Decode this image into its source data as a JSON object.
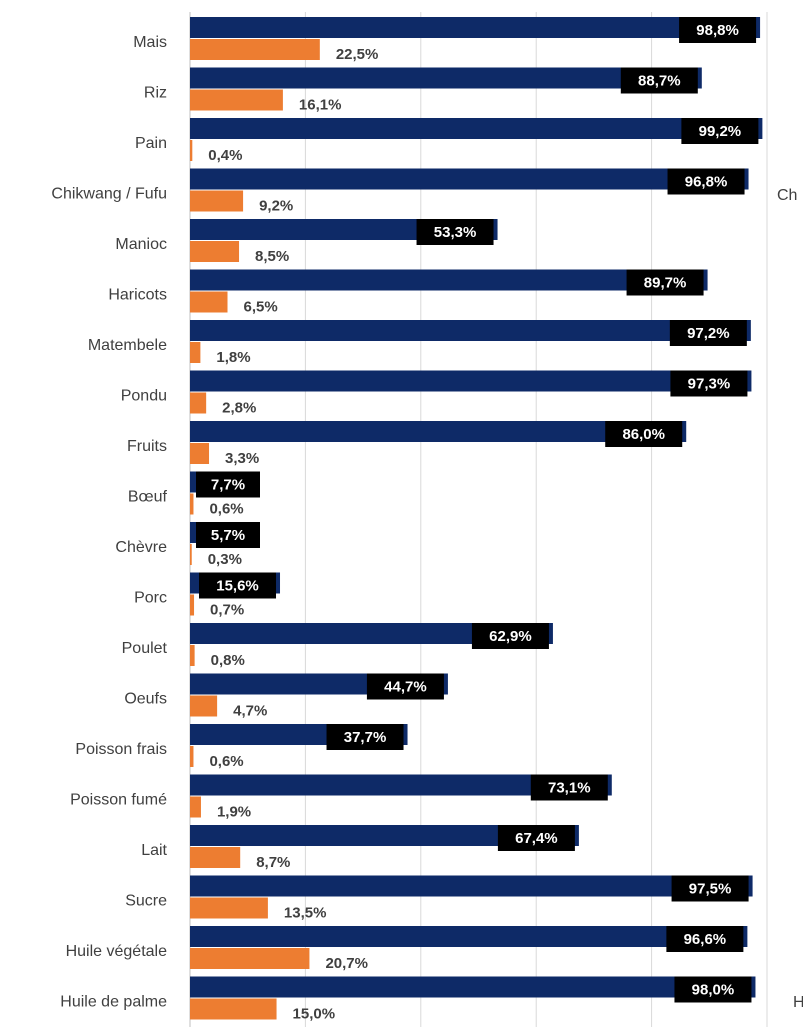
{
  "chart_data": {
    "type": "barh",
    "categories": [
      "Mais",
      "Riz",
      "Pain",
      "Chikwang / Fufu",
      "Manioc",
      "Haricots",
      "Matembele",
      "Pondu",
      "Fruits",
      "Bœuf",
      "Chèvre",
      "Porc",
      "Poulet",
      "Oeufs",
      "Poisson frais",
      "Poisson fumé",
      "Lait",
      "Sucre",
      "Huile végétale",
      "Huile de palme"
    ],
    "series": [
      {
        "color": "#0e2a67",
        "values": [
          98.8,
          88.7,
          99.2,
          96.8,
          53.3,
          89.7,
          97.2,
          97.3,
          86.0,
          7.7,
          5.7,
          15.6,
          62.9,
          44.7,
          37.7,
          73.1,
          67.4,
          97.5,
          96.6,
          98.0
        ],
        "value_labels": [
          "98,8%",
          "88,7%",
          "99,2%",
          "96,8%",
          "53,3%",
          "89,7%",
          "97,2%",
          "97,3%",
          "86,0%",
          "7,7%",
          "5,7%",
          "15,6%",
          "62,9%",
          "44,7%",
          "37,7%",
          "73,1%",
          "67,4%",
          "97,5%",
          "96,6%",
          "98,0%"
        ]
      },
      {
        "color": "#ed7d31",
        "values": [
          22.5,
          16.1,
          0.4,
          9.2,
          8.5,
          6.5,
          1.8,
          2.8,
          3.3,
          0.6,
          0.3,
          0.7,
          0.8,
          4.7,
          0.6,
          1.9,
          8.7,
          13.5,
          20.7,
          15.0
        ],
        "value_labels": [
          "22,5%",
          "16,1%",
          "0,4%",
          "9,2%",
          "8,5%",
          "6,5%",
          "1,8%",
          "2,8%",
          "3,3%",
          "0,6%",
          "0,3%",
          "0,7%",
          "0,8%",
          "4,7%",
          "0,6%",
          "1,9%",
          "8,7%",
          "13,5%",
          "20,7%",
          "15,0%"
        ]
      }
    ],
    "xlim": [
      0,
      100
    ],
    "xticks": [
      0,
      20,
      40,
      60,
      80,
      100
    ],
    "grid": true,
    "annotations": [
      "Ch",
      "H"
    ]
  }
}
